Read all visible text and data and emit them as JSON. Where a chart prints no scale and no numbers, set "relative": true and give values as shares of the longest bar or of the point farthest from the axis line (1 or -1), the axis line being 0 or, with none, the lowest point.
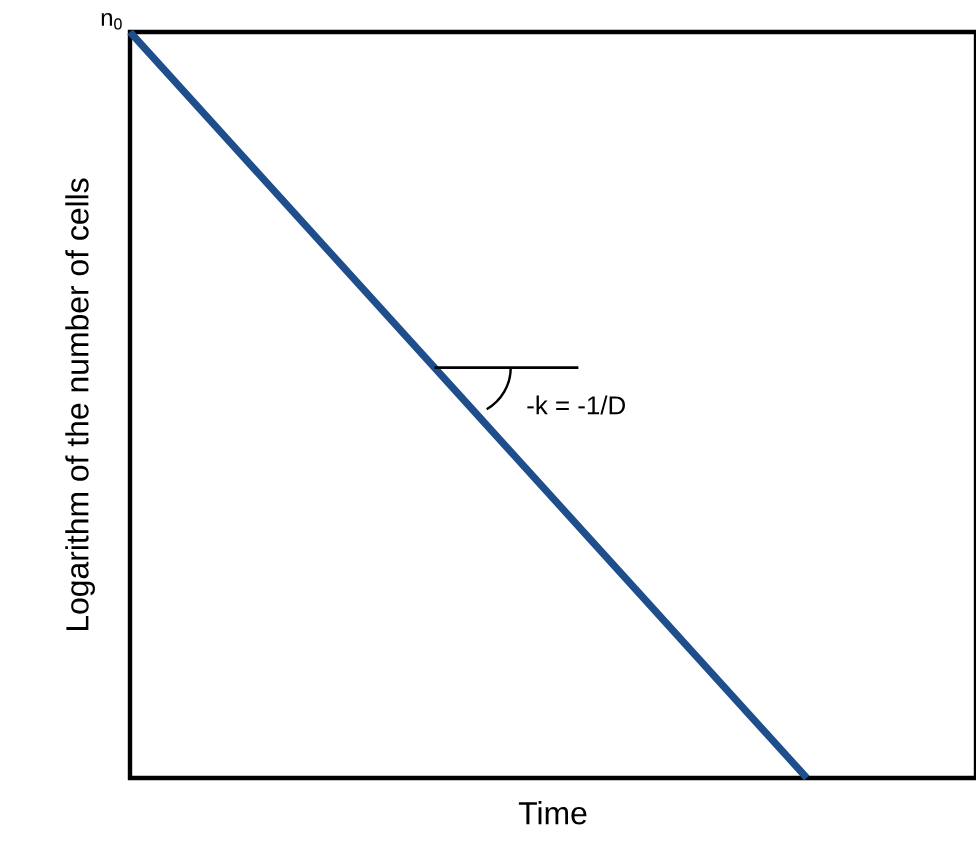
{
  "chart_data": {
    "type": "line",
    "relative": true,
    "xlabel": "Time",
    "ylabel": "Logarithm of the number of cells",
    "categories": [
      null,
      null,
      null,
      null,
      null,
      null
    ],
    "series": [
      {
        "color": "#1f4e8c",
        "values": [
          1,
          0.75,
          0.5,
          0.25,
          0,
          null
        ]
      }
    ],
    "annotations": [
      "n$_{0}$",
      "-k = -1/D"
    ]
  }
}
